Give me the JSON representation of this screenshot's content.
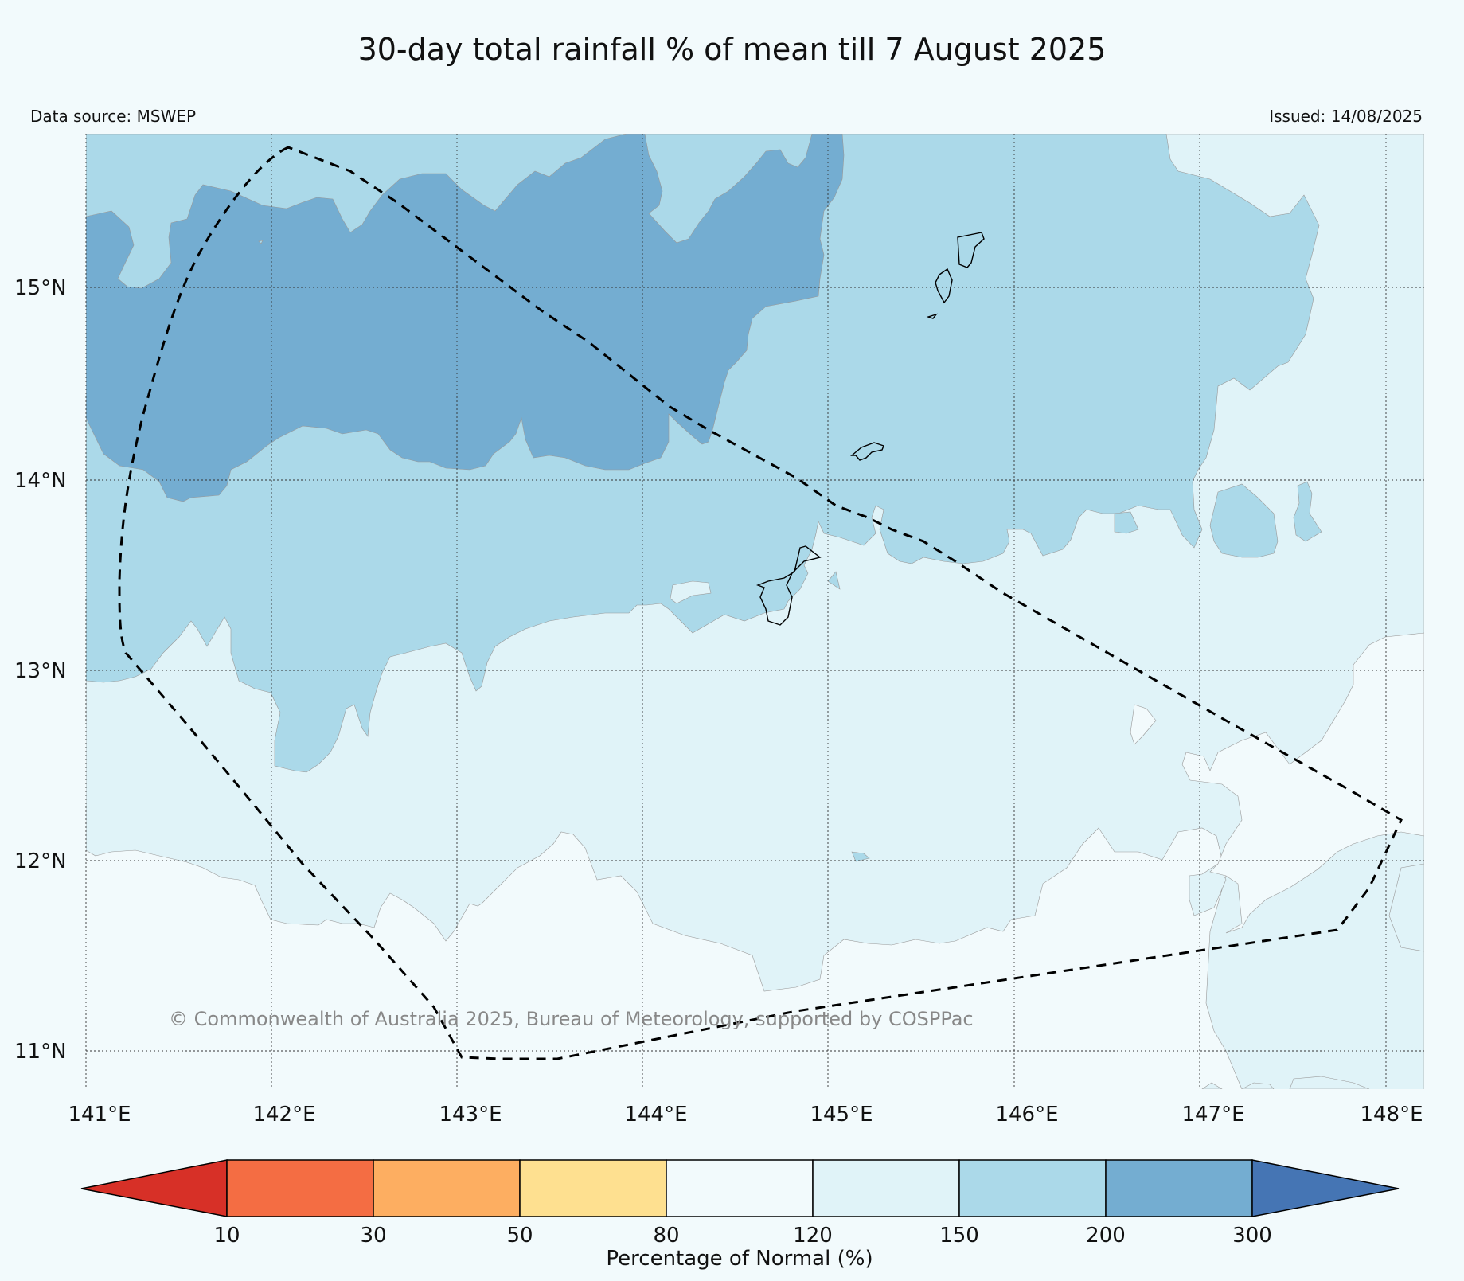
{
  "title": "30-day total rainfall % of mean till 7 August 2025",
  "data_source": "Data source: MSWEP",
  "issued": "Issued: 14/08/2025",
  "copyright": "© Commonwealth of Australia 2025, Bureau of Meteorology, supported by COSPPac",
  "lat_ticks": [
    "15°N",
    "14°N",
    "13°N",
    "12°N",
    "11°N"
  ],
  "lon_ticks": [
    "141°E",
    "142°E",
    "143°E",
    "144°E",
    "145°E",
    "146°E",
    "147°E",
    "148°E"
  ],
  "colorbar": {
    "label": "Percentage of Normal (%)",
    "ticks": [
      "10",
      "30",
      "50",
      "80",
      "120",
      "150",
      "200",
      "300"
    ],
    "colors": [
      "#d73027",
      "#f46d43",
      "#fdae61",
      "#fee090",
      "#f2fafc",
      "#e0f3f8",
      "#abd9e9",
      "#74add1",
      "#4575b4"
    ]
  },
  "colors": {
    "background": "#f2fafc",
    "band_120_150": "#e0f3f8",
    "band_150_200": "#abd9e9",
    "band_200_300": "#74add1"
  }
}
